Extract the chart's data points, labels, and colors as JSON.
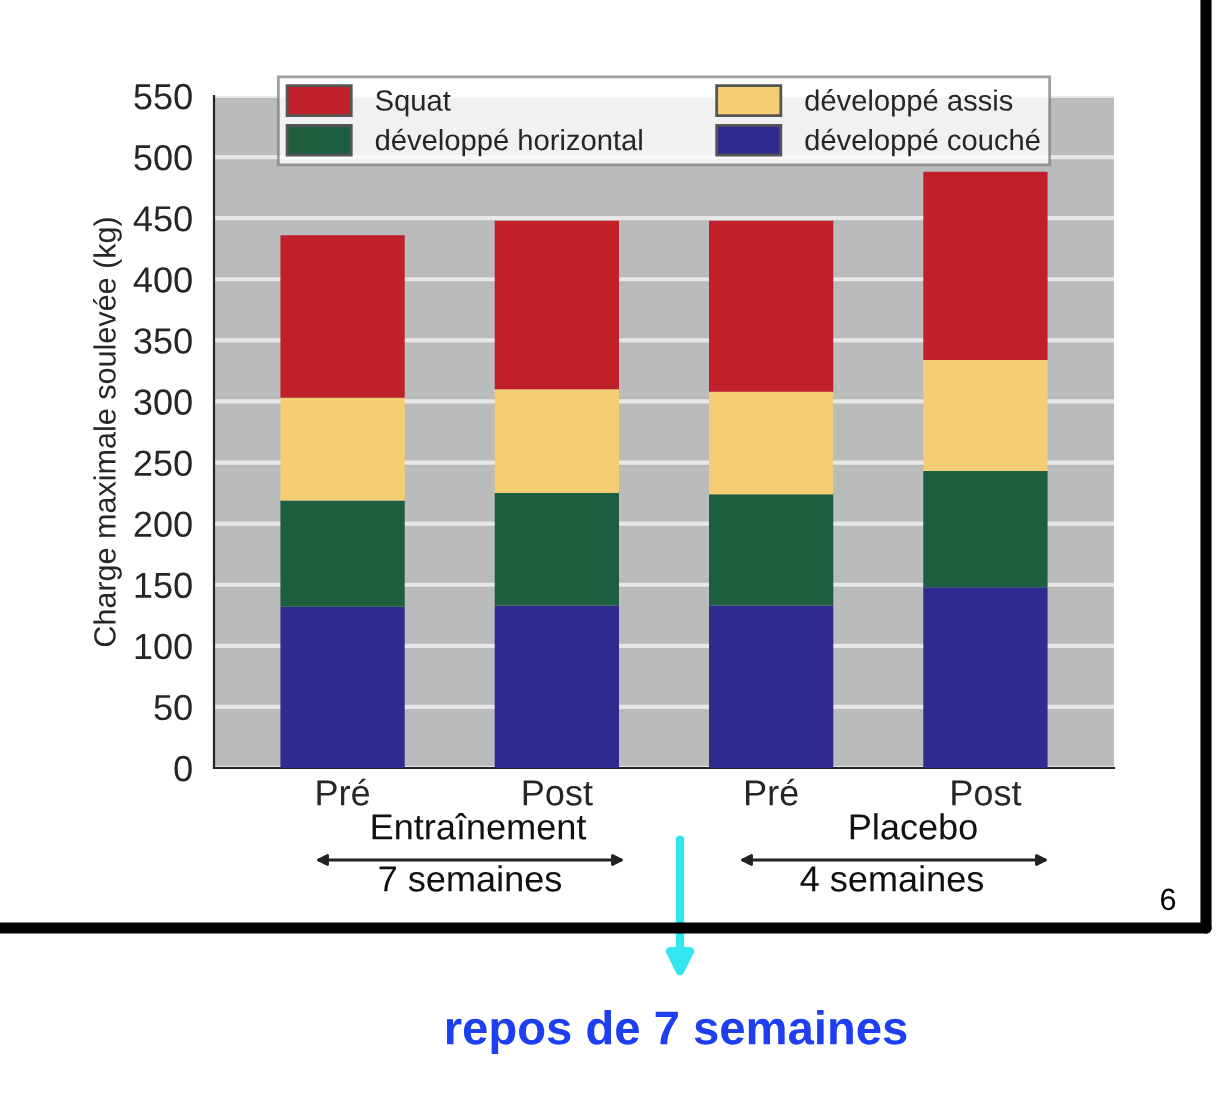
{
  "chart_data": {
    "type": "bar",
    "stacked": true,
    "ylabel": "Charge maximale soulevée (kg)",
    "categories": [
      "Pré",
      "Post",
      "Pré",
      "Post"
    ],
    "series": [
      {
        "name": "développé couché",
        "color": "#2e2a8e",
        "values": [
          132,
          133,
          133,
          148
        ]
      },
      {
        "name": "développé horizontal",
        "color": "#1e5e40",
        "values": [
          87,
          92,
          91,
          95
        ]
      },
      {
        "name": "développé assis",
        "color": "#f5cd72",
        "values": [
          84,
          85,
          84,
          91
        ]
      },
      {
        "name": "Squat",
        "color": "#c0202a",
        "values": [
          133,
          138,
          140,
          154
        ]
      }
    ],
    "ylim": [
      0,
      550
    ],
    "yticks": [
      0,
      50,
      100,
      150,
      200,
      250,
      300,
      350,
      400,
      450,
      500,
      550
    ],
    "grid": "y",
    "legend": "top",
    "annotations": [
      "Entraînement",
      "Placebo",
      "7 semaines",
      "4 semaines",
      "6",
      "repos de 7 semaines"
    ]
  }
}
